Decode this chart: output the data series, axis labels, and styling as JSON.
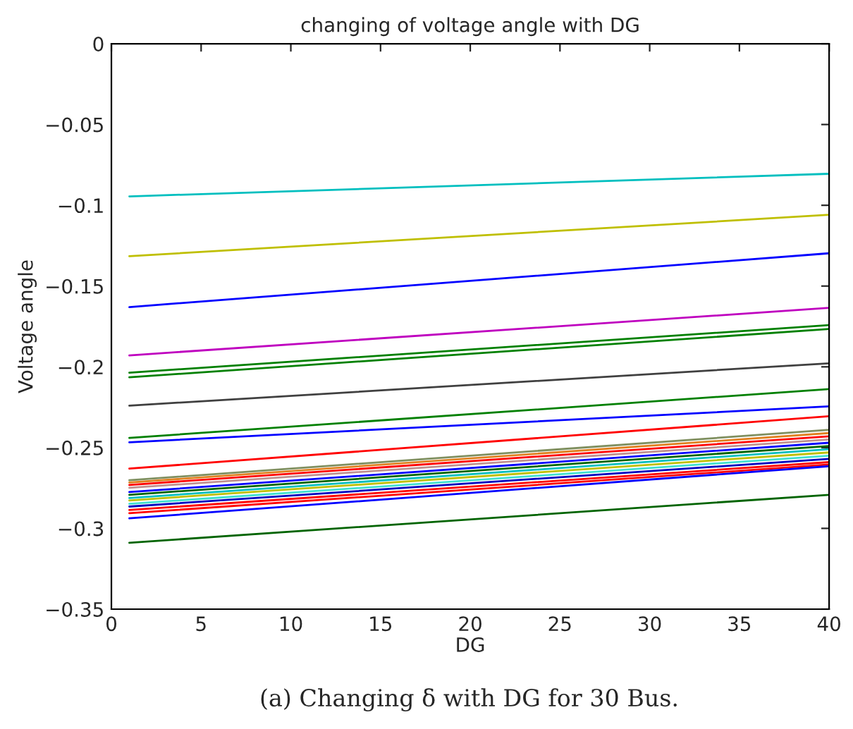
{
  "chart_data": {
    "type": "line",
    "title": "changing of voltage angle with DG",
    "xlabel": "DG",
    "ylabel": "Voltage angle",
    "annotations": [
      "(a) Changing δ with DG for 30 Bus."
    ],
    "xlim": [
      0,
      40
    ],
    "xticks": [
      0,
      5,
      10,
      15,
      20,
      25,
      30,
      35,
      40
    ],
    "ylim": [
      -0.35,
      0
    ],
    "yticks": [
      {
        "value": -0.35,
        "label": "−0.35"
      },
      {
        "value": -0.3,
        "label": "−0.3"
      },
      {
        "value": -0.25,
        "label": "−0.25"
      },
      {
        "value": -0.2,
        "label": "−0.2"
      },
      {
        "value": -0.15,
        "label": "−0.15"
      },
      {
        "value": -0.1,
        "label": "−0.1"
      },
      {
        "value": -0.05,
        "label": "−0.05"
      },
      0
    ],
    "grid": false,
    "legend": false,
    "line_style": "solid",
    "x": [
      1,
      40
    ],
    "series": [
      {
        "color": "#00bfbf",
        "values": [
          -0.0945,
          -0.0805
        ]
      },
      {
        "color": "#bfbf00",
        "values": [
          -0.1315,
          -0.1059
        ]
      },
      {
        "color": "#0000ff",
        "values": [
          -0.163,
          -0.1297
        ]
      },
      {
        "color": "#bf00bf",
        "values": [
          -0.1929,
          -0.1635
        ]
      },
      {
        "color": "#008000",
        "values": [
          -0.2036,
          -0.1742
        ]
      },
      {
        "color": "#008000",
        "values": [
          -0.2065,
          -0.1766
        ]
      },
      {
        "color": "#404040",
        "values": [
          -0.224,
          -0.1978
        ]
      },
      {
        "color": "#008000",
        "values": [
          -0.244,
          -0.2138
        ]
      },
      {
        "color": "#0000ff",
        "values": [
          -0.2467,
          -0.2245
        ]
      },
      {
        "color": "#ff0000",
        "values": [
          -0.263,
          -0.2306
        ]
      },
      {
        "color": "#7f8f5f",
        "values": [
          -0.2702,
          -0.239
        ]
      },
      {
        "color": "#e08020",
        "values": [
          -0.2716,
          -0.241
        ]
      },
      {
        "color": "#ff0000",
        "values": [
          -0.2731,
          -0.243
        ]
      },
      {
        "color": "#c09090",
        "values": [
          -0.2749,
          -0.245
        ]
      },
      {
        "color": "#0000ff",
        "values": [
          -0.2775,
          -0.247
        ]
      },
      {
        "color": "#006400",
        "values": [
          -0.2792,
          -0.249
        ]
      },
      {
        "color": "#00bfbf",
        "values": [
          -0.2812,
          -0.251
        ]
      },
      {
        "color": "#bfbf00",
        "values": [
          -0.2827,
          -0.253
        ]
      },
      {
        "color": "#40e0d0",
        "values": [
          -0.2848,
          -0.255
        ]
      },
      {
        "color": "#0000bf",
        "values": [
          -0.2865,
          -0.257
        ]
      },
      {
        "color": "#ff0000",
        "values": [
          -0.2886,
          -0.259
        ]
      },
      {
        "color": "#ff0000",
        "values": [
          -0.2906,
          -0.2605
        ]
      },
      {
        "color": "#0000ff",
        "values": [
          -0.2938,
          -0.2615
        ]
      },
      {
        "color": "#006400",
        "values": [
          -0.3089,
          -0.2792
        ]
      }
    ]
  }
}
